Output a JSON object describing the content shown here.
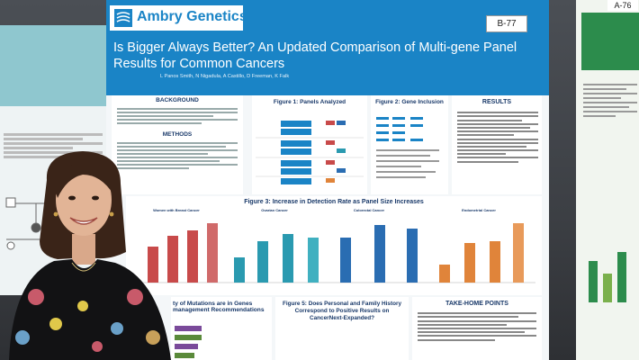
{
  "poster": {
    "number": "B-77",
    "brand": "Ambry Genetics",
    "title": "Is Bigger Always Better? An Updated Comparison of Multi-gene Panel Results for Common Cancers",
    "authors": "L Panos Smith, N Nigadula, A Castillo, D Freeman, K Falk",
    "sections": {
      "background": "BACKGROUND",
      "methods": "METHODS",
      "figure1": "Figure 1: Panels Analyzed",
      "figure2": "Figure 2: Gene Inclusion",
      "results": "RESULTS",
      "figure3": "Figure 3: Increase in Detection Rate as Panel Size Increases",
      "figure3_groups": [
        "Women with Breast Cancer",
        "Ovarian Cancer",
        "Colorectal Cancer",
        "Endometrial Cancer"
      ],
      "fragment_left": "ty of Mutations are in Genes\nmanagement Recommendations",
      "figure5": "Figure 5: Does Personal and Family History Correspond to Positive Results on CancerNext-Expanded?",
      "takehome": "TAKE-HOME POINTS"
    }
  },
  "neighbor_right": {
    "number": "A-76"
  },
  "colors": {
    "poster_blue": "#1a84c6",
    "bar_red": "#c84a4a",
    "bar_teal": "#2a9ab0",
    "bar_blue": "#2a6db2",
    "bar_orange": "#e0843a"
  }
}
